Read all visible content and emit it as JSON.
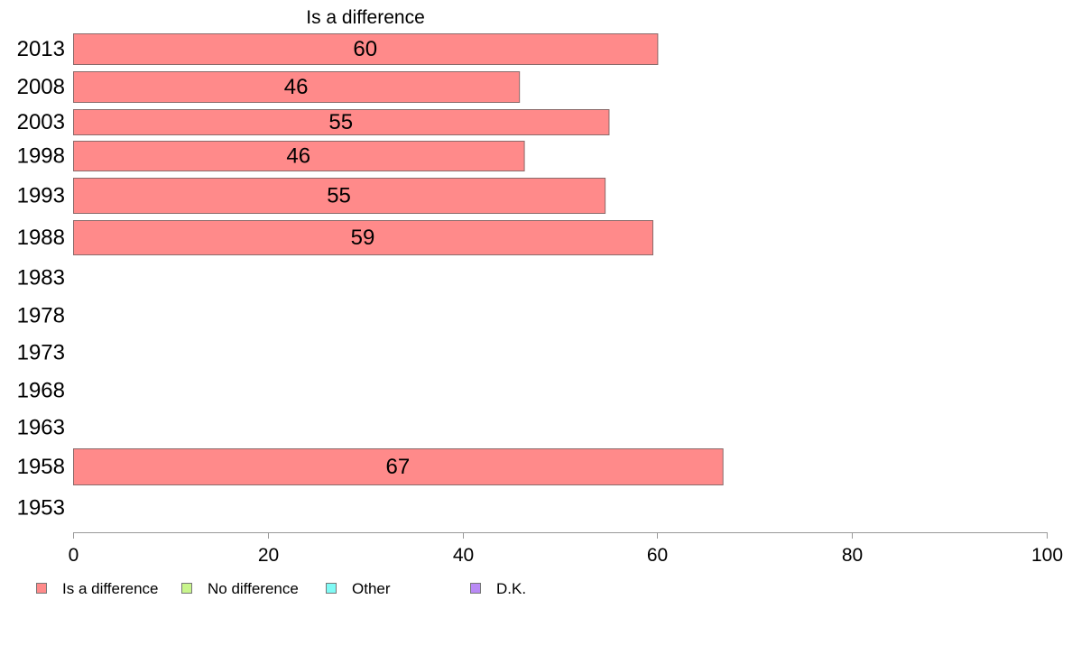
{
  "chart_data": {
    "type": "bar",
    "orientation": "horizontal",
    "title": "Is a difference",
    "categories": [
      "2013",
      "2008",
      "2003",
      "1998",
      "1993",
      "1988",
      "1983",
      "1978",
      "1973",
      "1968",
      "1963",
      "1958",
      "1953"
    ],
    "series": [
      {
        "name": "Is a difference",
        "values": [
          60,
          46,
          55,
          46,
          55,
          59,
          null,
          null,
          null,
          null,
          null,
          67,
          null
        ],
        "exact_values": [
          60.0,
          45.8,
          55.0,
          46.3,
          54.6,
          59.5,
          null,
          null,
          null,
          null,
          null,
          66.7,
          null
        ]
      }
    ],
    "xlim": [
      0,
      100
    ],
    "xticks": [
      0,
      20,
      40,
      60,
      80,
      100
    ],
    "xlabel": "",
    "ylabel": "",
    "grid": false,
    "legend_position": "bottom",
    "legend": [
      {
        "label": "Is a difference",
        "color": "#ff8a8a"
      },
      {
        "label": "No difference",
        "color": "#c8f58c"
      },
      {
        "label": "Other",
        "color": "#7ffaf5"
      },
      {
        "label": "D.K.",
        "color": "#b98af5"
      }
    ],
    "colors": {
      "bar": "#ff8a8a",
      "bar_border": "#8a6a6a",
      "axis": "#999999"
    }
  }
}
